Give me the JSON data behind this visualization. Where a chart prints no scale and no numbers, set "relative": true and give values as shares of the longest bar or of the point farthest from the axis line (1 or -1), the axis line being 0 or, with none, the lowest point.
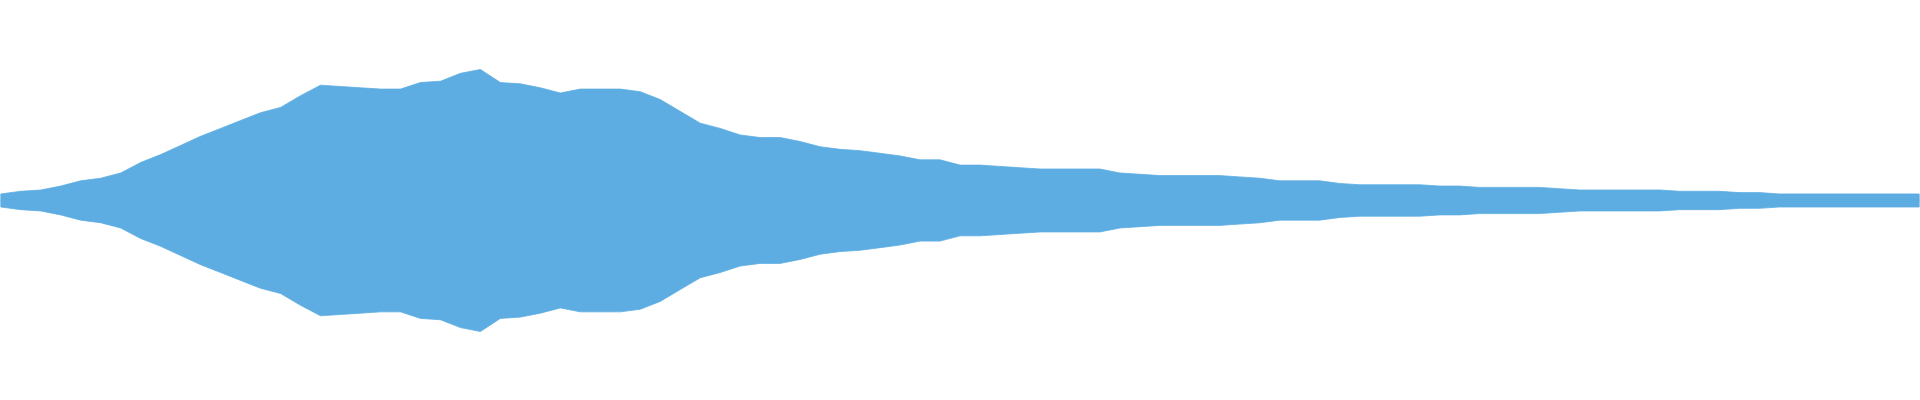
{
  "chart_data": {
    "type": "area",
    "relative": true,
    "categories": [
      null,
      null,
      null,
      null,
      null,
      null,
      null,
      null,
      null,
      null,
      null,
      null,
      null,
      null,
      null,
      null,
      null,
      null,
      null,
      null,
      null,
      null,
      null,
      null,
      null,
      null,
      null,
      null,
      null,
      null,
      null,
      null,
      null,
      null,
      null,
      null,
      null,
      null,
      null,
      null,
      null,
      null,
      null,
      null,
      null,
      null,
      null,
      null,
      null,
      null,
      null,
      null,
      null,
      null,
      null,
      null,
      null,
      null,
      null,
      null,
      null,
      null,
      null,
      null,
      null,
      null,
      null,
      null,
      null,
      null,
      null,
      null,
      null,
      null,
      null,
      null,
      null,
      null,
      null,
      null,
      null,
      null,
      null,
      null,
      null,
      null,
      null,
      null,
      null,
      null,
      null,
      null,
      null,
      null,
      null,
      null,
      null
    ],
    "series": [
      {
        "color": "#5dade2",
        "values": [
          0.05,
          0.07,
          0.08,
          0.11,
          0.15,
          0.17,
          0.21,
          0.29,
          0.35,
          0.42,
          0.49,
          0.55,
          0.61,
          0.67,
          0.71,
          0.8,
          0.88,
          0.87,
          0.86,
          0.85,
          0.85,
          0.9,
          0.91,
          0.97,
          1.0,
          0.9,
          0.89,
          0.86,
          0.82,
          0.85,
          0.85,
          0.85,
          0.83,
          0.77,
          0.68,
          0.59,
          0.55,
          0.5,
          0.48,
          0.48,
          0.45,
          0.41,
          0.39,
          0.38,
          0.36,
          0.34,
          0.31,
          0.31,
          0.27,
          0.27,
          0.26,
          0.25,
          0.24,
          0.24,
          0.24,
          0.24,
          0.21,
          0.2,
          0.19,
          0.19,
          0.19,
          0.19,
          0.18,
          0.17,
          0.15,
          0.15,
          0.15,
          0.13,
          0.12,
          0.12,
          0.12,
          0.12,
          0.11,
          0.11,
          0.1,
          0.1,
          0.1,
          0.1,
          0.09,
          0.08,
          0.08,
          0.08,
          0.08,
          0.08,
          0.07,
          0.07,
          0.07,
          0.06,
          0.06,
          0.05,
          0.05,
          0.05,
          0.05,
          0.05,
          0.05,
          0.05,
          0.05
        ]
      },
      {
        "color": "#5dade2",
        "values": [
          -0.05,
          -0.07,
          -0.08,
          -0.11,
          -0.15,
          -0.17,
          -0.21,
          -0.29,
          -0.35,
          -0.42,
          -0.49,
          -0.55,
          -0.61,
          -0.67,
          -0.71,
          -0.8,
          -0.88,
          -0.87,
          -0.86,
          -0.85,
          -0.85,
          -0.9,
          -0.91,
          -0.97,
          -1.0,
          -0.9,
          -0.89,
          -0.86,
          -0.82,
          -0.85,
          -0.85,
          -0.85,
          -0.83,
          -0.77,
          -0.68,
          -0.59,
          -0.55,
          -0.5,
          -0.48,
          -0.48,
          -0.45,
          -0.41,
          -0.39,
          -0.38,
          -0.36,
          -0.34,
          -0.31,
          -0.31,
          -0.27,
          -0.27,
          -0.26,
          -0.25,
          -0.24,
          -0.24,
          -0.24,
          -0.24,
          -0.21,
          -0.2,
          -0.19,
          -0.19,
          -0.19,
          -0.19,
          -0.18,
          -0.17,
          -0.15,
          -0.15,
          -0.15,
          -0.13,
          -0.12,
          -0.12,
          -0.12,
          -0.12,
          -0.11,
          -0.11,
          -0.1,
          -0.1,
          -0.1,
          -0.1,
          -0.09,
          -0.08,
          -0.08,
          -0.08,
          -0.08,
          -0.08,
          -0.07,
          -0.07,
          -0.07,
          -0.06,
          -0.06,
          -0.05,
          -0.05,
          -0.05,
          -0.05,
          -0.05,
          -0.05,
          -0.05,
          -0.05
        ]
      }
    ]
  }
}
